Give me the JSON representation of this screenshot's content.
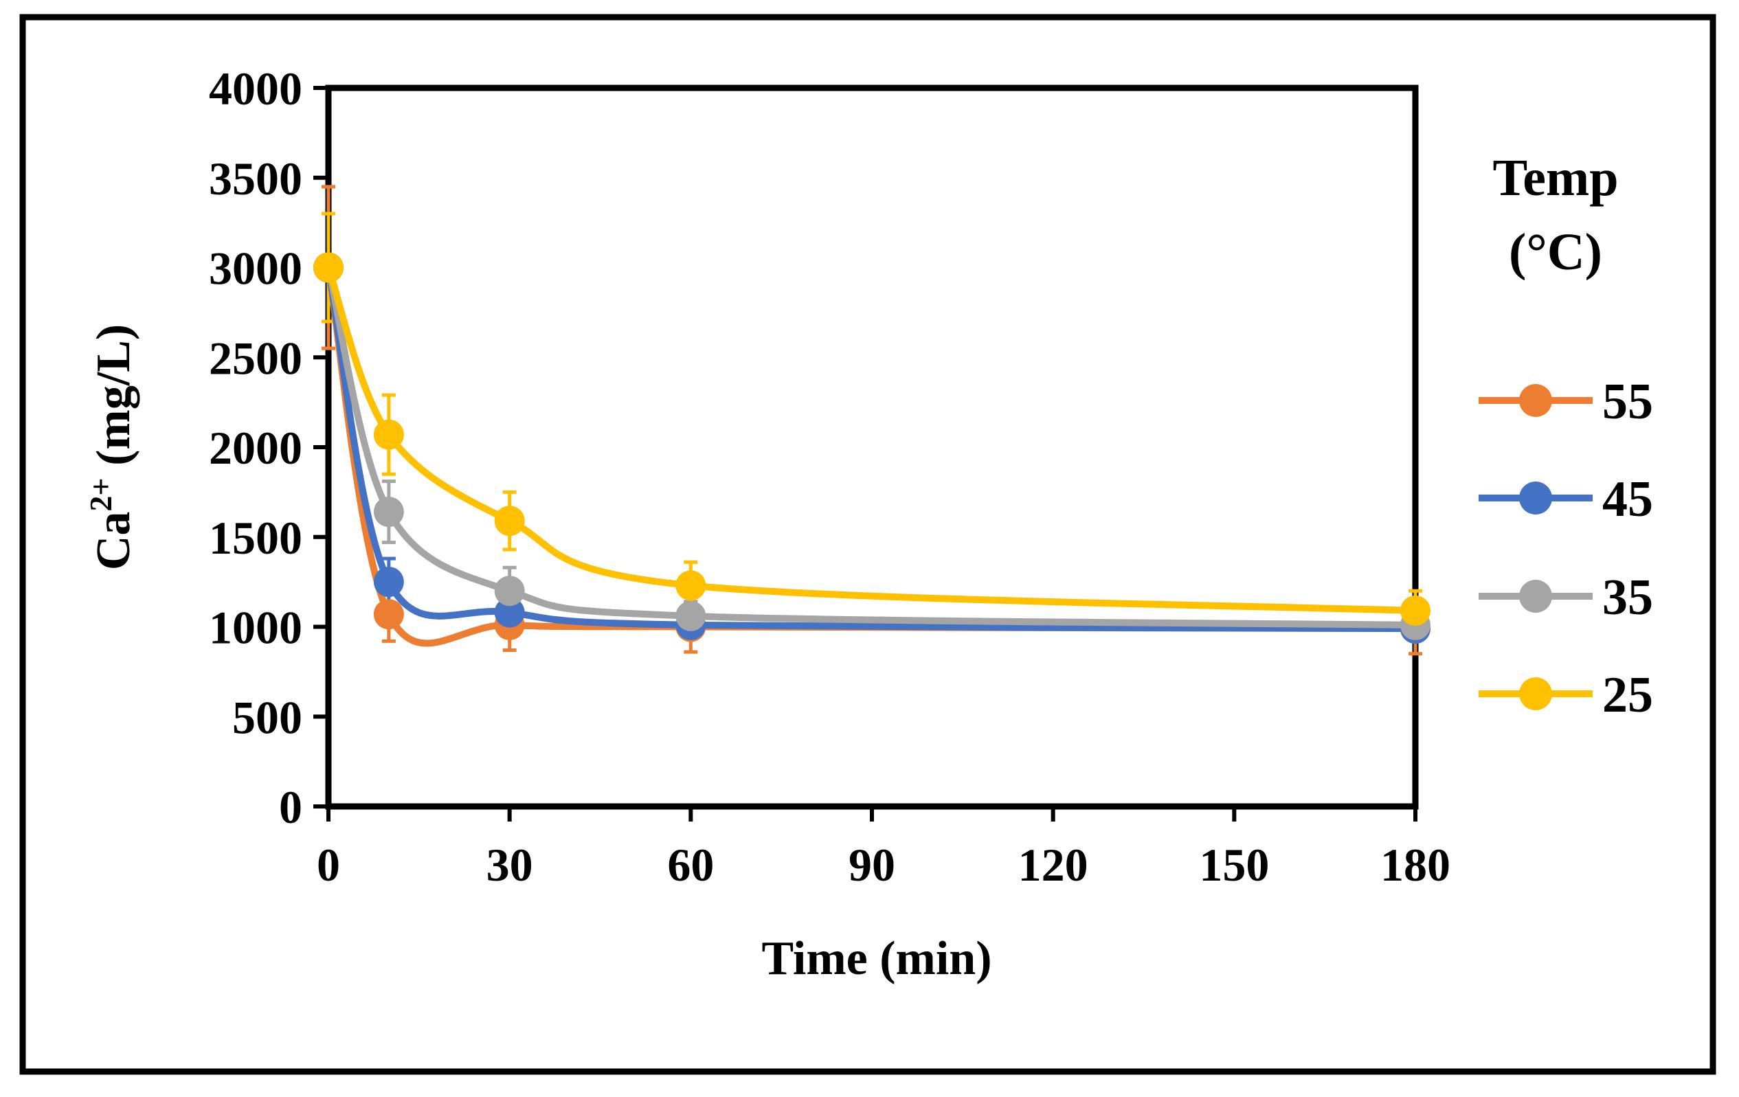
{
  "chart_data": {
    "type": "line",
    "title": "",
    "xlabel": "Time (min)",
    "ylabel_base": "Ca",
    "ylabel_sup": "2+",
    "ylabel_rest": " (mg/L)",
    "xlim": [
      0,
      180
    ],
    "ylim": [
      0,
      4000
    ],
    "xticks": [
      0,
      30,
      60,
      90,
      120,
      150,
      180
    ],
    "xtick_labels": [
      "0",
      "30",
      "60",
      "90",
      "120",
      "150",
      "180"
    ],
    "yticks": [
      0,
      500,
      1000,
      1500,
      2000,
      2500,
      3000,
      3500,
      4000
    ],
    "ytick_labels": [
      "0",
      "500",
      "1000",
      "1500",
      "2000",
      "2500",
      "3000",
      "3500",
      "4000"
    ],
    "grid": false,
    "smooth": true,
    "legend_title_line1": "Temp",
    "legend_title_line2": "(°C)",
    "legend_position": "right",
    "x": [
      0,
      10,
      30,
      60,
      180
    ],
    "series": [
      {
        "name": "55",
        "color": "#ED7D31",
        "values": [
          3000,
          1070,
          1010,
          1000,
          990
        ],
        "errors": [
          450,
          150,
          140,
          140,
          140
        ]
      },
      {
        "name": "45",
        "color": "#4472C4",
        "values": [
          3000,
          1250,
          1080,
          1010,
          990
        ],
        "errors": [
          300,
          130,
          60,
          60,
          60
        ]
      },
      {
        "name": "35",
        "color": "#A5A5A5",
        "values": [
          3000,
          1640,
          1200,
          1060,
          1010
        ],
        "errors": [
          300,
          170,
          130,
          80,
          80
        ]
      },
      {
        "name": "25",
        "color": "#FFC000",
        "values": [
          3000,
          2070,
          1590,
          1230,
          1090
        ],
        "errors": [
          300,
          220,
          160,
          130,
          110
        ]
      }
    ]
  }
}
